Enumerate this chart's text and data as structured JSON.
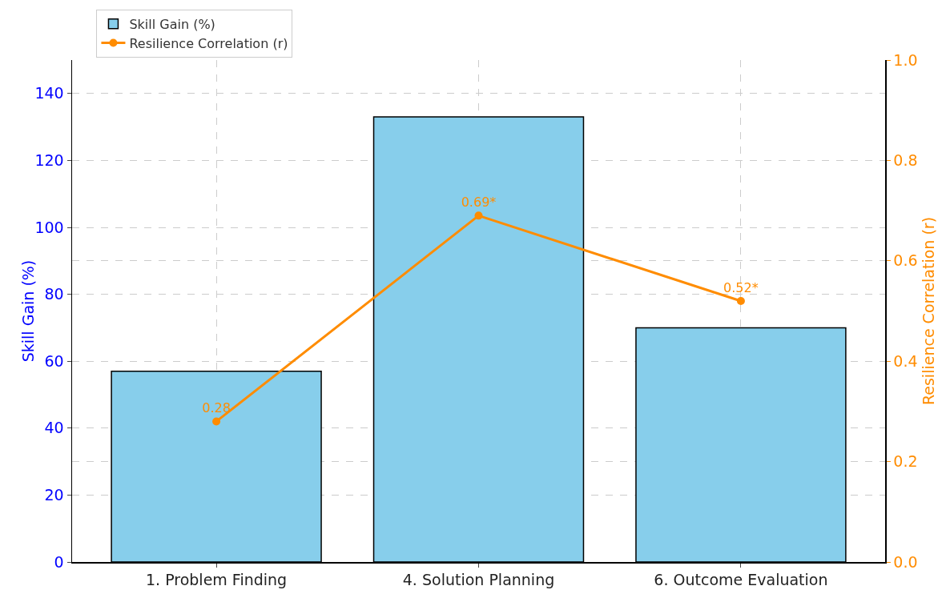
{
  "chart_data": {
    "type": "bar",
    "categories": [
      "1. Problem Finding",
      "4. Solution Planning",
      "6. Outcome Evaluation"
    ],
    "series": [
      {
        "name": "Skill Gain (%)",
        "color": "#87ceeb",
        "values": [
          57,
          133,
          70
        ]
      },
      {
        "name": "Resilience Correlation (r)",
        "type": "line",
        "axis": "y2",
        "color": "#ff8c00",
        "values": [
          0.28,
          0.69,
          0.52
        ],
        "value_labels": [
          "0.28",
          "0.69*",
          "0.52*"
        ]
      }
    ],
    "ylabel": "Skill Gain (%)",
    "y2label": "Resilience Correlation (r)",
    "ylim": [
      0,
      150
    ],
    "yticks": [
      0,
      20,
      40,
      60,
      80,
      100,
      120,
      140
    ],
    "y2lim": [
      0,
      1
    ],
    "y2ticks": [
      {
        "value": 0,
        "label": "0.0"
      },
      0.2,
      0.4,
      0.6,
      0.8,
      {
        "value": 1,
        "label": "1.0"
      }
    ],
    "grid": true,
    "legend": "top left",
    "marker": "circle",
    "line_style": "solid"
  }
}
